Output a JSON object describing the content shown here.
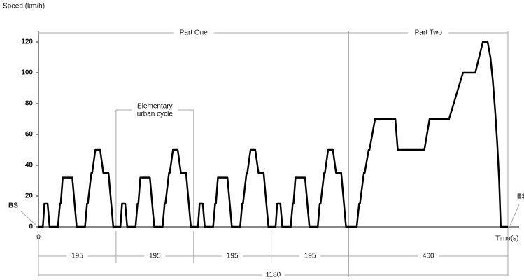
{
  "chart_data": {
    "type": "line",
    "y_label": "Speed (km/h)",
    "x_label": "Time(s)",
    "parts": [
      "Part One",
      "Part Two"
    ],
    "subcycle_label": [
      "Elementary",
      "urban cycle"
    ],
    "start_label": "BS",
    "end_label": "ES",
    "segments": [
      195,
      195,
      195,
      195,
      400
    ],
    "total": 1180,
    "xlim": [
      0,
      1180
    ],
    "ylim": [
      0,
      127
    ],
    "xticks": [
      0
    ],
    "yticks": [
      0,
      20,
      40,
      60,
      80,
      100,
      120
    ],
    "color": "#000000",
    "x": [
      0,
      11,
      15,
      23,
      28,
      49,
      54,
      56,
      61,
      85,
      96,
      117,
      122,
      124,
      133,
      135,
      143,
      155,
      163,
      176,
      188,
      195,
      206,
      210,
      218,
      223,
      244,
      249,
      251,
      256,
      280,
      291,
      312,
      317,
      319,
      328,
      330,
      338,
      350,
      358,
      371,
      383,
      390,
      401,
      405,
      413,
      418,
      439,
      444,
      446,
      451,
      475,
      486,
      507,
      512,
      514,
      523,
      525,
      533,
      545,
      553,
      566,
      578,
      585,
      596,
      600,
      608,
      613,
      634,
      639,
      641,
      646,
      670,
      681,
      702,
      707,
      709,
      718,
      720,
      728,
      740,
      748,
      761,
      773,
      800,
      806,
      808,
      818,
      820,
      830,
      832,
      846,
      897,
      903,
      970,
      983,
      1032,
      1067,
      1098,
      1117,
      1129,
      1136,
      1142,
      1148,
      1153,
      1158,
      1162,
      1180
    ],
    "values": [
      0,
      0,
      15,
      15,
      0,
      0,
      15,
      15,
      32,
      32,
      0,
      0,
      15,
      15,
      35,
      35,
      50,
      50,
      35,
      35,
      0,
      0,
      0,
      15,
      15,
      0,
      0,
      15,
      15,
      32,
      32,
      0,
      0,
      15,
      15,
      35,
      35,
      50,
      50,
      35,
      35,
      0,
      0,
      0,
      15,
      15,
      0,
      0,
      15,
      15,
      32,
      32,
      0,
      0,
      15,
      15,
      35,
      35,
      50,
      50,
      35,
      35,
      0,
      0,
      0,
      15,
      15,
      0,
      0,
      15,
      15,
      32,
      32,
      0,
      0,
      15,
      15,
      35,
      35,
      50,
      50,
      35,
      35,
      0,
      0,
      15,
      15,
      35,
      35,
      50,
      50,
      70,
      70,
      50,
      50,
      70,
      70,
      100,
      100,
      120,
      120,
      110,
      95,
      75,
      55,
      30,
      0,
      0
    ]
  }
}
